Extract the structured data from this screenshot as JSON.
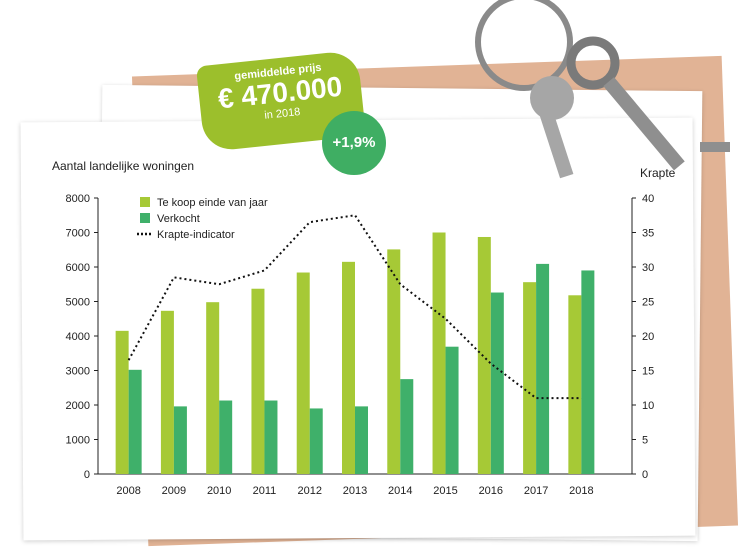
{
  "price_tag": {
    "caption": "gemiddelde prijs",
    "value": "€ 470.000",
    "year": "in 2018",
    "change": "+1,9%"
  },
  "chart_data": {
    "type": "bar",
    "title": "",
    "ylabel_left": "Aantal landelijke woningen",
    "ylabel_right": "Krapte",
    "categories": [
      "2008",
      "2009",
      "2010",
      "2011",
      "2012",
      "2013",
      "2014",
      "2015",
      "2016",
      "2017",
      "2018"
    ],
    "ylim_left": [
      0,
      8000
    ],
    "yticks_left": [
      0,
      1000,
      2000,
      3000,
      4000,
      5000,
      6000,
      7000,
      8000
    ],
    "ylim_right": [
      0,
      40
    ],
    "yticks_right": [
      0,
      5,
      10,
      15,
      20,
      25,
      30,
      35,
      40
    ],
    "series": [
      {
        "name": "Te koop einde van jaar",
        "type": "bar",
        "axis": "left",
        "color": "#a6c936",
        "values": [
          4150,
          4730,
          4980,
          5370,
          5840,
          6150,
          6510,
          7000,
          6870,
          5560,
          5180
        ]
      },
      {
        "name": "Verkocht",
        "type": "bar",
        "axis": "left",
        "color": "#3fb06a",
        "values": [
          3020,
          1960,
          2130,
          2130,
          1900,
          1960,
          2750,
          3690,
          5260,
          6090,
          5900
        ]
      },
      {
        "name": "Krapte-indicator",
        "type": "line",
        "axis": "right",
        "color": "#111111",
        "style": "dotted",
        "values": [
          16.5,
          28.5,
          27.5,
          29.5,
          36.5,
          37.5,
          27.5,
          22.5,
          16,
          11,
          11
        ]
      }
    ],
    "legend_position": "top-left",
    "grid": false
  }
}
